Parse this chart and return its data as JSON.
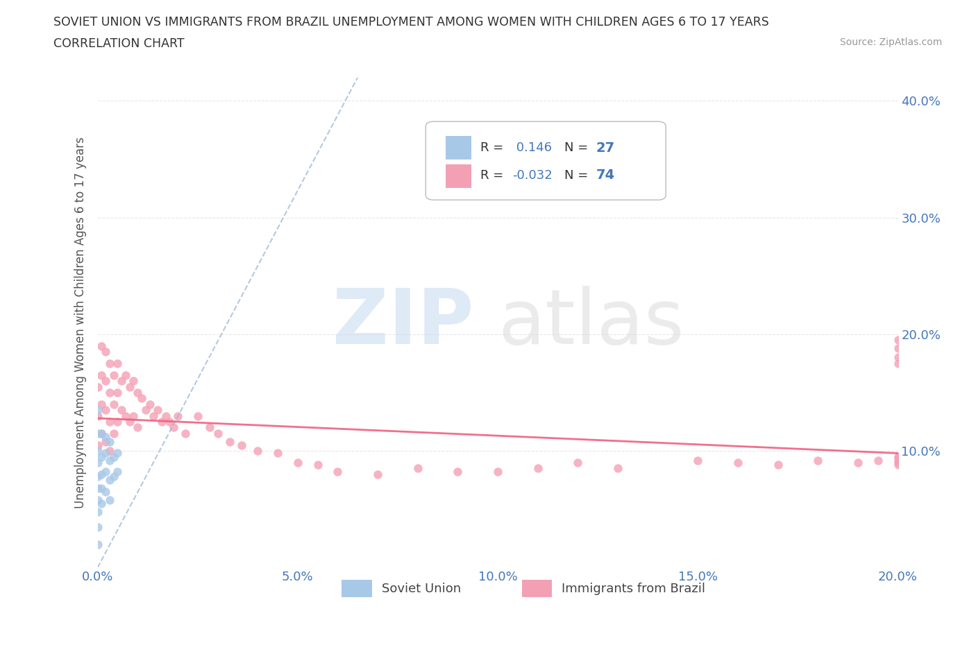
{
  "title_line1": "SOVIET UNION VS IMMIGRANTS FROM BRAZIL UNEMPLOYMENT AMONG WOMEN WITH CHILDREN AGES 6 TO 17 YEARS",
  "title_line2": "CORRELATION CHART",
  "source_text": "Source: ZipAtlas.com",
  "ylabel": "Unemployment Among Women with Children Ages 6 to 17 years",
  "xlim": [
    0.0,
    0.2
  ],
  "ylim": [
    0.0,
    0.42
  ],
  "soviet_color": "#a8c8e8",
  "brazil_color": "#f4a0b4",
  "soviet_line_color": "#9ab8d8",
  "brazil_line_color": "#f06080",
  "soviet_R": 0.146,
  "soviet_N": 27,
  "brazil_R": -0.032,
  "brazil_N": 74,
  "background_color": "#ffffff",
  "grid_color": "#e8e8e8",
  "tick_color": "#4477bb",
  "title_color": "#333333",
  "marker_size": 80,
  "legend_labels": [
    "Soviet Union",
    "Immigrants from Brazil"
  ],
  "soviet_x": [
    0.0,
    0.0,
    0.0,
    0.0,
    0.0,
    0.0,
    0.0,
    0.0,
    0.0,
    0.0,
    0.001,
    0.001,
    0.001,
    0.001,
    0.001,
    0.002,
    0.002,
    0.002,
    0.002,
    0.003,
    0.003,
    0.003,
    0.003,
    0.004,
    0.004,
    0.005,
    0.005
  ],
  "soviet_y": [
    0.135,
    0.115,
    0.1,
    0.09,
    0.078,
    0.068,
    0.058,
    0.048,
    0.035,
    0.02,
    0.115,
    0.095,
    0.08,
    0.068,
    0.055,
    0.112,
    0.098,
    0.082,
    0.065,
    0.108,
    0.092,
    0.075,
    0.058,
    0.095,
    0.078,
    0.098,
    0.082
  ],
  "brazil_x": [
    0.0,
    0.0,
    0.0,
    0.001,
    0.001,
    0.001,
    0.001,
    0.002,
    0.002,
    0.002,
    0.002,
    0.003,
    0.003,
    0.003,
    0.003,
    0.004,
    0.004,
    0.004,
    0.005,
    0.005,
    0.005,
    0.006,
    0.006,
    0.007,
    0.007,
    0.008,
    0.008,
    0.009,
    0.009,
    0.01,
    0.01,
    0.011,
    0.012,
    0.013,
    0.014,
    0.015,
    0.016,
    0.017,
    0.018,
    0.019,
    0.02,
    0.022,
    0.025,
    0.028,
    0.03,
    0.033,
    0.036,
    0.04,
    0.045,
    0.05,
    0.055,
    0.06,
    0.07,
    0.08,
    0.09,
    0.1,
    0.11,
    0.12,
    0.13,
    0.15,
    0.16,
    0.17,
    0.18,
    0.19,
    0.195,
    0.2,
    0.2,
    0.2,
    0.2,
    0.2,
    0.2,
    0.2,
    0.2,
    0.2
  ],
  "brazil_y": [
    0.155,
    0.13,
    0.105,
    0.19,
    0.165,
    0.14,
    0.115,
    0.185,
    0.16,
    0.135,
    0.108,
    0.175,
    0.15,
    0.125,
    0.1,
    0.165,
    0.14,
    0.115,
    0.175,
    0.15,
    0.125,
    0.16,
    0.135,
    0.165,
    0.13,
    0.155,
    0.125,
    0.16,
    0.13,
    0.15,
    0.12,
    0.145,
    0.135,
    0.14,
    0.13,
    0.135,
    0.125,
    0.13,
    0.125,
    0.12,
    0.13,
    0.115,
    0.13,
    0.12,
    0.115,
    0.108,
    0.105,
    0.1,
    0.098,
    0.09,
    0.088,
    0.082,
    0.08,
    0.085,
    0.082,
    0.082,
    0.085,
    0.09,
    0.085,
    0.092,
    0.09,
    0.088,
    0.092,
    0.09,
    0.092,
    0.09,
    0.195,
    0.18,
    0.095,
    0.188,
    0.175,
    0.092,
    0.088,
    0.095
  ],
  "soviet_line_x": [
    0.0,
    0.065
  ],
  "soviet_line_y": [
    0.0,
    0.42
  ],
  "brazil_line_x": [
    0.0,
    0.2
  ],
  "brazil_line_y": [
    0.128,
    0.098
  ]
}
